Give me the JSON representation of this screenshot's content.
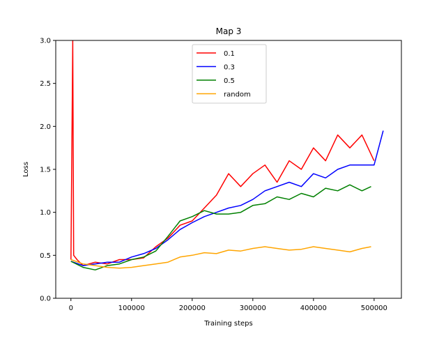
{
  "chart_data": {
    "type": "line",
    "title": "Map 3",
    "xlabel": "Training steps",
    "ylabel": "Loss",
    "xlim": [
      -25000,
      545000
    ],
    "ylim": [
      0.0,
      3.0
    ],
    "x_ticks": [
      0,
      100000,
      200000,
      300000,
      400000,
      500000
    ],
    "x_tick_labels": [
      "0",
      "100000",
      "200000",
      "300000",
      "400000",
      "500000"
    ],
    "y_ticks": [
      0.0,
      0.5,
      1.0,
      1.5,
      2.0,
      2.5,
      3.0
    ],
    "y_tick_labels": [
      "0.0",
      "0.5",
      "1.0",
      "1.5",
      "2.0",
      "2.5",
      "3.0"
    ],
    "grid": false,
    "legend_position": "upper center",
    "series": [
      {
        "name": "0.1",
        "color": "#ff0000",
        "points": [
          [
            0,
            0.45
          ],
          [
            3000,
            3.0
          ],
          [
            4500,
            0.5
          ],
          [
            10000,
            0.45
          ],
          [
            20000,
            0.38
          ],
          [
            40000,
            0.42
          ],
          [
            60000,
            0.4
          ],
          [
            80000,
            0.45
          ],
          [
            100000,
            0.45
          ],
          [
            120000,
            0.47
          ],
          [
            140000,
            0.6
          ],
          [
            160000,
            0.7
          ],
          [
            180000,
            0.85
          ],
          [
            200000,
            0.9
          ],
          [
            220000,
            1.05
          ],
          [
            240000,
            1.2
          ],
          [
            260000,
            1.45
          ],
          [
            280000,
            1.3
          ],
          [
            300000,
            1.45
          ],
          [
            320000,
            1.55
          ],
          [
            340000,
            1.35
          ],
          [
            360000,
            1.6
          ],
          [
            380000,
            1.5
          ],
          [
            400000,
            1.75
          ],
          [
            420000,
            1.6
          ],
          [
            440000,
            1.9
          ],
          [
            460000,
            1.75
          ],
          [
            480000,
            1.9
          ],
          [
            500000,
            1.6
          ]
        ]
      },
      {
        "name": "0.3",
        "color": "#0000ff",
        "points": [
          [
            0,
            0.43
          ],
          [
            20000,
            0.38
          ],
          [
            40000,
            0.4
          ],
          [
            60000,
            0.42
          ],
          [
            80000,
            0.42
          ],
          [
            100000,
            0.48
          ],
          [
            120000,
            0.52
          ],
          [
            140000,
            0.58
          ],
          [
            160000,
            0.68
          ],
          [
            180000,
            0.8
          ],
          [
            200000,
            0.88
          ],
          [
            220000,
            0.95
          ],
          [
            240000,
            1.0
          ],
          [
            260000,
            1.05
          ],
          [
            280000,
            1.08
          ],
          [
            300000,
            1.15
          ],
          [
            320000,
            1.25
          ],
          [
            340000,
            1.3
          ],
          [
            360000,
            1.35
          ],
          [
            380000,
            1.3
          ],
          [
            400000,
            1.45
          ],
          [
            420000,
            1.4
          ],
          [
            440000,
            1.5
          ],
          [
            460000,
            1.55
          ],
          [
            480000,
            1.55
          ],
          [
            500000,
            1.55
          ],
          [
            515000,
            1.95
          ]
        ]
      },
      {
        "name": "0.5",
        "color": "#008000",
        "points": [
          [
            0,
            0.43
          ],
          [
            20000,
            0.36
          ],
          [
            40000,
            0.33
          ],
          [
            60000,
            0.38
          ],
          [
            80000,
            0.4
          ],
          [
            100000,
            0.45
          ],
          [
            120000,
            0.48
          ],
          [
            140000,
            0.55
          ],
          [
            160000,
            0.72
          ],
          [
            180000,
            0.9
          ],
          [
            200000,
            0.95
          ],
          [
            220000,
            1.02
          ],
          [
            240000,
            0.98
          ],
          [
            260000,
            0.98
          ],
          [
            280000,
            1.0
          ],
          [
            300000,
            1.08
          ],
          [
            320000,
            1.1
          ],
          [
            340000,
            1.18
          ],
          [
            360000,
            1.15
          ],
          [
            380000,
            1.22
          ],
          [
            400000,
            1.18
          ],
          [
            420000,
            1.28
          ],
          [
            440000,
            1.25
          ],
          [
            460000,
            1.32
          ],
          [
            480000,
            1.25
          ],
          [
            495000,
            1.3
          ]
        ]
      },
      {
        "name": "random",
        "color": "#ffa500",
        "points": [
          [
            0,
            0.45
          ],
          [
            20000,
            0.4
          ],
          [
            40000,
            0.38
          ],
          [
            60000,
            0.36
          ],
          [
            80000,
            0.35
          ],
          [
            100000,
            0.36
          ],
          [
            120000,
            0.38
          ],
          [
            140000,
            0.4
          ],
          [
            160000,
            0.42
          ],
          [
            180000,
            0.48
          ],
          [
            200000,
            0.5
          ],
          [
            220000,
            0.53
          ],
          [
            240000,
            0.52
          ],
          [
            260000,
            0.56
          ],
          [
            280000,
            0.55
          ],
          [
            300000,
            0.58
          ],
          [
            320000,
            0.6
          ],
          [
            340000,
            0.58
          ],
          [
            360000,
            0.56
          ],
          [
            380000,
            0.57
          ],
          [
            400000,
            0.6
          ],
          [
            420000,
            0.58
          ],
          [
            440000,
            0.56
          ],
          [
            460000,
            0.54
          ],
          [
            480000,
            0.58
          ],
          [
            495000,
            0.6
          ]
        ]
      }
    ]
  }
}
